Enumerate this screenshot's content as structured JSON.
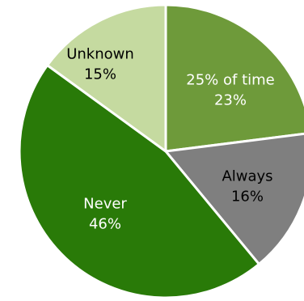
{
  "chart_data": {
    "type": "pie",
    "title": "",
    "start_category": "25% of time",
    "direction": "clockwise",
    "slices": [
      {
        "label_lines": [
          "25% of time",
          "23%"
        ],
        "category": "25% of time",
        "value": 23,
        "color": "#6e9a3a",
        "label_color": "#ffffff"
      },
      {
        "label_lines": [
          "Always",
          "16%"
        ],
        "category": "Always",
        "value": 16,
        "color": "#7f7f7f",
        "label_color": "#000000"
      },
      {
        "label_lines": [
          "Never",
          "46%"
        ],
        "category": "Never",
        "value": 46,
        "color": "#297a08",
        "label_color": "#ffffff"
      },
      {
        "label_lines": [
          "Unknown",
          "15%"
        ],
        "category": "Unknown",
        "value": 15,
        "color": "#c5daa0",
        "label_color": "#000000"
      }
    ],
    "slice_border_color": "#ffffff",
    "legend": "none"
  }
}
